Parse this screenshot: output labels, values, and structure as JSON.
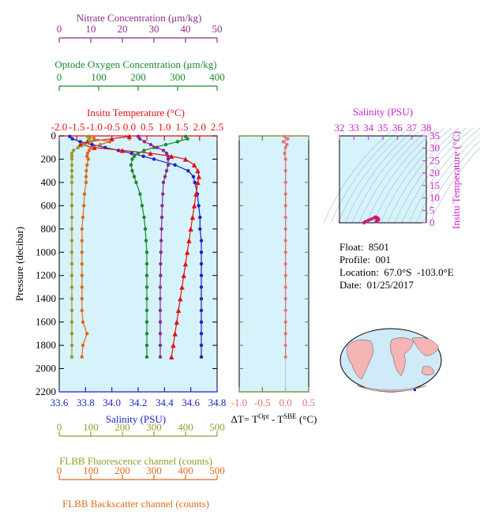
{
  "colors": {
    "nitrate": "#8b2c8b",
    "oxygen": "#1a8a2a",
    "temperature": "#e01010",
    "salinity": "#1a22c8",
    "fluorescence": "#9a9a2a",
    "backscatter": "#e06a1a",
    "delta_t": "#f06a6a",
    "ts_axis": "#cc22cc",
    "plot_bg": "#d6f2fb"
  },
  "info": {
    "float": "Float:  8501",
    "profile": "Profile:  001",
    "location": "Location:  67.0°S  -103.0°E",
    "date": "Date:  01/25/2017"
  },
  "chart_data": [
    {
      "type": "line",
      "title": "",
      "ylabel": "Pressure (decibar)",
      "ylim": [
        2200,
        0
      ],
      "yticks": [
        "0",
        "200",
        "400",
        "600",
        "800",
        "1000",
        "1200",
        "1400",
        "1600",
        "1800",
        "2000",
        "2200"
      ],
      "axes": {
        "nitrate": {
          "label": "Nitrate Concentration (μm/kg)",
          "range": [
            0,
            50
          ],
          "ticks": [
            "0",
            "10",
            "20",
            "30",
            "40",
            "50"
          ]
        },
        "oxygen": {
          "label": "Optode Oxygen Concentration (μm/kg)",
          "range": [
            0,
            400
          ],
          "ticks": [
            "0",
            "100",
            "200",
            "300",
            "400"
          ]
        },
        "temperature": {
          "label": "Insitu Temperature (°C)",
          "range": [
            -2.0,
            2.5
          ],
          "ticks": [
            "-2.0",
            "-1.5",
            "-1.0",
            "-0.5",
            "0.0",
            "0.5",
            "1.0",
            "1.5",
            "2.0",
            "2.5"
          ]
        },
        "salinity": {
          "label": "Salinity (PSU)",
          "range": [
            33.6,
            34.8
          ],
          "ticks": [
            "33.6",
            "33.8",
            "34.0",
            "34.2",
            "34.4",
            "34.6",
            "34.8"
          ]
        },
        "fluorescence": {
          "label": "FLBB Fluorescence channel (counts)",
          "range": [
            0,
            500
          ],
          "ticks": [
            "0",
            "100",
            "200",
            "300",
            "400",
            "500"
          ]
        },
        "backscatter": {
          "label": "FLBB Backscatter channel (counts)",
          "range": [
            0,
            500
          ],
          "ticks": [
            "0",
            "100",
            "200",
            "300",
            "400",
            "500"
          ]
        }
      },
      "series": [
        {
          "axis": "salinity",
          "marker": "circle",
          "pressure": [
            5,
            25,
            50,
            75,
            100,
            125,
            150,
            175,
            200,
            250,
            300,
            350,
            400,
            500,
            600,
            700,
            800,
            900,
            1000,
            1100,
            1200,
            1300,
            1400,
            1500,
            1600,
            1700,
            1800,
            1900
          ],
          "values": [
            33.68,
            33.7,
            33.76,
            33.85,
            33.95,
            34.05,
            34.15,
            34.24,
            34.32,
            34.48,
            34.58,
            34.62,
            34.63,
            34.65,
            34.66,
            34.67,
            34.67,
            34.68,
            34.68,
            34.68,
            34.68,
            34.68,
            34.68,
            34.68,
            34.68,
            34.68,
            34.68,
            34.68
          ]
        },
        {
          "axis": "temperature",
          "marker": "triangle",
          "pressure": [
            5,
            25,
            50,
            75,
            100,
            125,
            150,
            175,
            200,
            250,
            300,
            350,
            400,
            500,
            600,
            700,
            800,
            900,
            1000,
            1100,
            1200,
            1300,
            1400,
            1500,
            1600,
            1700,
            1800,
            1900
          ],
          "values": [
            0.0,
            -0.5,
            -1.2,
            -1.4,
            -1.0,
            -0.2,
            0.6,
            1.2,
            1.6,
            1.85,
            1.95,
            1.98,
            1.95,
            1.9,
            1.85,
            1.8,
            1.75,
            1.7,
            1.65,
            1.6,
            1.55,
            1.5,
            1.45,
            1.4,
            1.35,
            1.3,
            1.25,
            1.2
          ]
        },
        {
          "axis": "oxygen",
          "marker": "circle",
          "pressure": [
            5,
            25,
            50,
            75,
            100,
            125,
            150,
            175,
            200,
            250,
            300,
            350,
            400,
            500,
            600,
            700,
            800,
            900,
            1000,
            1100,
            1200,
            1300,
            1400,
            1500,
            1600,
            1700,
            1800,
            1900
          ],
          "values": [
            320,
            325,
            300,
            270,
            240,
            215,
            200,
            190,
            185,
            182,
            185,
            190,
            195,
            205,
            210,
            215,
            218,
            220,
            222,
            222,
            222,
            222,
            222,
            222,
            222,
            222,
            222,
            222
          ]
        },
        {
          "axis": "nitrate",
          "marker": "circle",
          "pressure": [
            5,
            25,
            50,
            75,
            100,
            125,
            150,
            175,
            200,
            250,
            300,
            350,
            400,
            500,
            600,
            700,
            800,
            900,
            1000,
            1100,
            1200,
            1300,
            1400,
            1500,
            1600,
            1700,
            1800,
            1900
          ],
          "values": [
            25,
            25.5,
            27,
            29,
            31,
            33,
            34,
            34.5,
            34.5,
            34.5,
            34,
            33.5,
            33,
            32.8,
            32.6,
            32.5,
            32.4,
            32.3,
            32.2,
            32.1,
            32.1,
            32,
            32,
            32,
            32,
            32,
            32,
            32
          ]
        },
        {
          "axis": "backscatter",
          "marker": "circle",
          "pressure": [
            5,
            25,
            50,
            75,
            100,
            125,
            150,
            175,
            200,
            250,
            300,
            350,
            400,
            500,
            600,
            700,
            800,
            900,
            1000,
            1100,
            1200,
            1300,
            1400,
            1500,
            1600,
            1700,
            1800,
            1900
          ],
          "values": [
            95,
            110,
            160,
            130,
            100,
            95,
            90,
            88,
            92,
            88,
            86,
            85,
            85,
            80,
            78,
            75,
            72,
            72,
            72,
            72,
            72,
            72,
            72,
            72,
            75,
            88,
            75,
            72
          ]
        },
        {
          "axis": "fluorescence",
          "marker": "circle",
          "pressure": [
            5,
            25,
            50,
            75,
            100,
            125,
            150,
            175,
            200,
            250,
            300,
            350,
            400,
            500,
            600,
            700,
            800,
            900,
            1000,
            1100,
            1200,
            1300,
            1400,
            1500,
            1600,
            1700,
            1800,
            1900
          ],
          "values": [
            90,
            95,
            100,
            80,
            60,
            45,
            40,
            40,
            40,
            40,
            40,
            40,
            40,
            40,
            40,
            40,
            40,
            40,
            40,
            40,
            40,
            40,
            40,
            40,
            40,
            40,
            40,
            40
          ]
        }
      ]
    },
    {
      "type": "line",
      "xlabel": "ΔT= T^Opt - T^SBE (°C)",
      "xlim": [
        -1.0,
        0.5
      ],
      "xticks": [
        "-1.0",
        "-0.5",
        "0.0",
        "0.5"
      ],
      "ylim": [
        2200,
        0
      ],
      "series": [
        {
          "pressure": [
            5,
            25,
            50,
            75,
            100,
            150,
            200,
            300,
            400,
            500,
            600,
            700,
            800,
            900,
            1000,
            1100,
            1200,
            1300,
            1400,
            1500,
            1600,
            1700,
            1800,
            1900
          ],
          "values": [
            -0.02,
            0.05,
            -0.05,
            0.03,
            0.0,
            -0.02,
            0.0,
            0.0,
            0.0,
            0.0,
            0.0,
            0.0,
            0.0,
            0.0,
            0.0,
            0.0,
            0.0,
            0.0,
            0.0,
            0.0,
            0.0,
            0.0,
            0.0,
            0.0
          ]
        }
      ]
    },
    {
      "type": "scatter",
      "title": "Salinity (PSU)",
      "ylabel": "Insitu Temperature (°C)",
      "xlim": [
        32,
        38
      ],
      "ylim": [
        0,
        35
      ],
      "xticks": [
        "32",
        "33",
        "34",
        "35",
        "36",
        "37",
        "38"
      ],
      "yticks": [
        "0",
        "5",
        "10",
        "15",
        "20",
        "25",
        "30",
        "35"
      ],
      "points": {
        "salinity": [
          33.7,
          33.8,
          34.0,
          34.2,
          34.4,
          34.5,
          34.6,
          34.65,
          34.68,
          34.7,
          34.6,
          34.55
        ],
        "temperature": [
          0.0,
          0.5,
          1.0,
          1.5,
          2.0,
          2.3,
          2.0,
          1.8,
          1.5,
          1.2,
          1.0,
          0.5
        ]
      }
    }
  ]
}
